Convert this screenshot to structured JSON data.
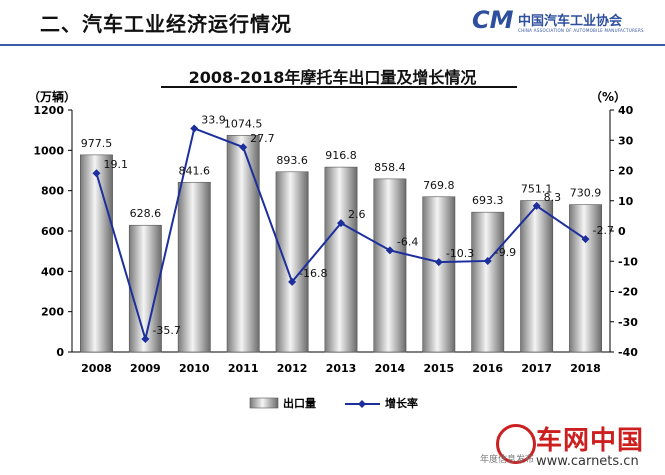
{
  "header": {
    "title": "二、汽车工业经济运行情况",
    "logo_mark": "CM",
    "logo_cn": "中国汽车工业协会",
    "logo_en": "CHINA ASSOCIATION OF AUTOMOBILE MANUFACTURERS"
  },
  "chart_data": {
    "type": "bar",
    "title": "2008-2018年摩托车出口量及增长情况",
    "ylabel": "（万辆）",
    "y2label": "（%）",
    "categories": [
      "2008",
      "2009",
      "2010",
      "2011",
      "2012",
      "2013",
      "2014",
      "2015",
      "2016",
      "2017",
      "2018"
    ],
    "ylim": [
      0,
      1200
    ],
    "yticks": [
      0,
      200,
      400,
      600,
      800,
      1000,
      1200
    ],
    "y2lim": [
      -40,
      40
    ],
    "y2ticks": [
      40,
      30,
      20,
      10,
      0,
      -10,
      -20,
      -30,
      -40
    ],
    "series": [
      {
        "name": "出口量",
        "kind": "bar",
        "axis": "left",
        "values": [
          977.5,
          628.6,
          841.6,
          1074.5,
          893.6,
          916.8,
          858.4,
          769.8,
          693.3,
          751.1,
          730.9
        ]
      },
      {
        "name": "增长率",
        "kind": "line",
        "axis": "right",
        "values": [
          19.1,
          -35.7,
          33.9,
          27.7,
          -16.8,
          2.6,
          -6.4,
          -10.3,
          -9.9,
          8.3,
          -2.7
        ]
      }
    ],
    "legend": "bottom",
    "grid": false,
    "line_color": "#1c2f9c"
  },
  "watermark": {
    "name": "车网中国",
    "url": "www.carnets.cn",
    "footer": "年度信息发布"
  }
}
